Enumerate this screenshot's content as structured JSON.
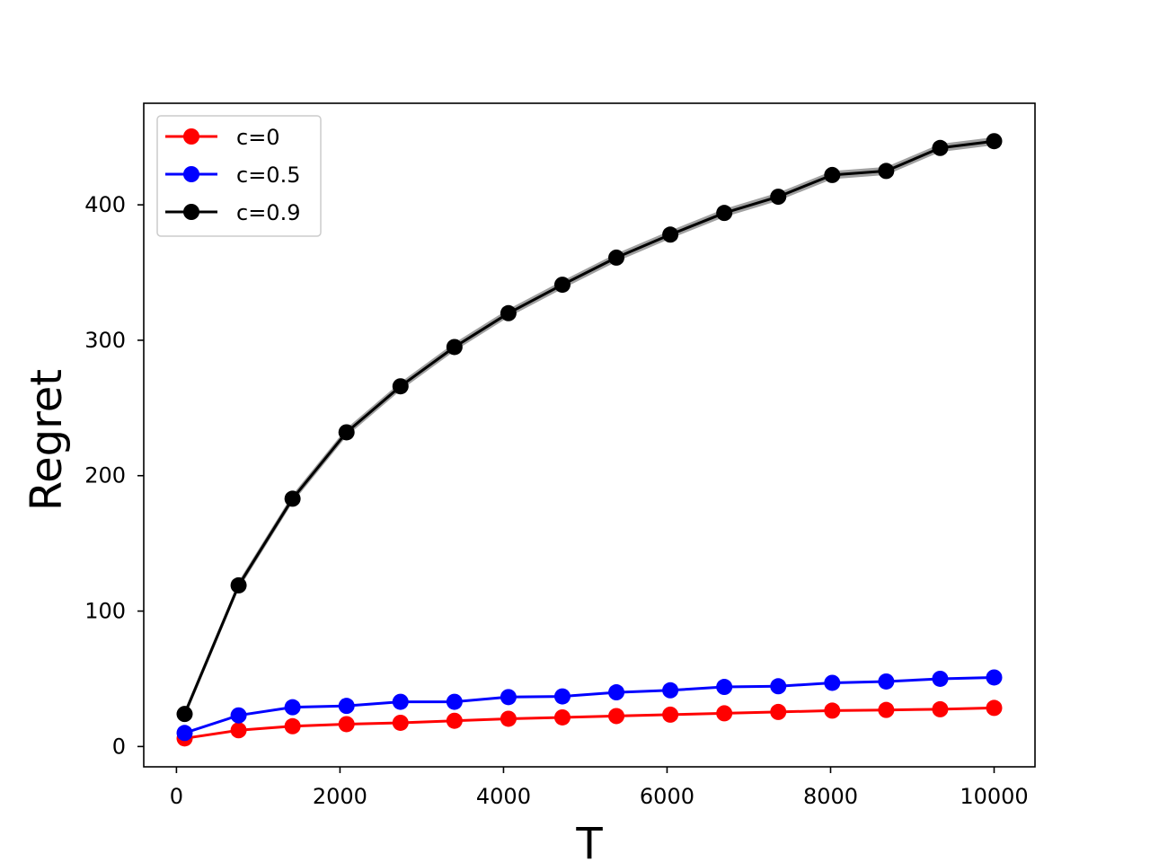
{
  "chart_data": {
    "type": "line",
    "xlabel": "T",
    "ylabel": "Regret",
    "xlim": [
      -400,
      10500
    ],
    "ylim": [
      -15,
      475
    ],
    "xticks": [
      0,
      2000,
      4000,
      6000,
      8000,
      10000
    ],
    "yticks": [
      0,
      100,
      200,
      300,
      400
    ],
    "grid": false,
    "legend_position": "top-left",
    "x": [
      100,
      760,
      1420,
      2080,
      2740,
      3400,
      4060,
      4720,
      5380,
      6040,
      6700,
      7360,
      8020,
      8680,
      9340,
      10000
    ],
    "series": [
      {
        "name": "c=0",
        "color": "#ff0000",
        "values": [
          6,
          12,
          15,
          16.5,
          17.5,
          19,
          20.5,
          21.5,
          22.5,
          23.5,
          24.5,
          25.5,
          26.5,
          27,
          27.5,
          28.5
        ]
      },
      {
        "name": "c=0.5",
        "color": "#0000ff",
        "values": [
          10,
          23,
          29,
          30,
          33,
          33,
          36.5,
          37,
          40,
          41.5,
          44,
          44.5,
          47,
          48,
          50,
          51
        ]
      },
      {
        "name": "c=0.9",
        "color": "#000000",
        "band_color": "#808080",
        "values": [
          24,
          119,
          183,
          232,
          266,
          295,
          320,
          341,
          361,
          378,
          394,
          406,
          422,
          425,
          442,
          447
        ]
      }
    ]
  }
}
